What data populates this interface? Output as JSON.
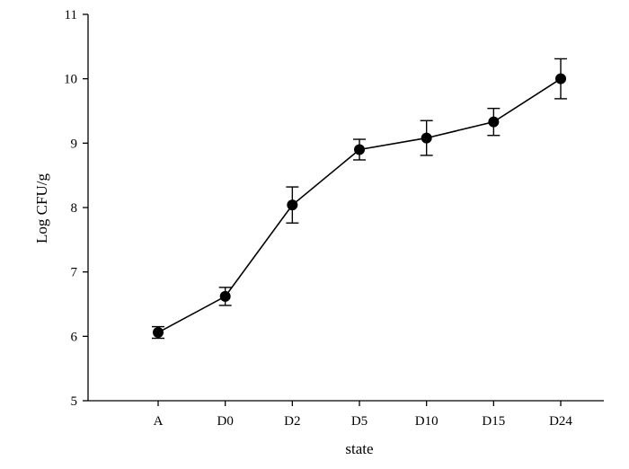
{
  "chart_data": {
    "type": "line",
    "title": "",
    "xlabel": "state",
    "ylabel": "Log CFU/g",
    "categories": [
      "A",
      "D0",
      "D2",
      "D5",
      "D10",
      "D15",
      "D24"
    ],
    "series": [
      {
        "values": [
          6.06,
          6.62,
          8.04,
          8.9,
          9.08,
          9.33,
          10.0
        ],
        "error": [
          0.09,
          0.14,
          0.28,
          0.16,
          0.27,
          0.21,
          0.31
        ]
      }
    ],
    "ylim": [
      5,
      11
    ],
    "yticks": [
      "5",
      "6",
      "7",
      "8",
      "9",
      "10",
      "11"
    ],
    "grid": false,
    "legend": "none",
    "colors": {
      "line": "#000000",
      "marker": "#000000"
    }
  }
}
